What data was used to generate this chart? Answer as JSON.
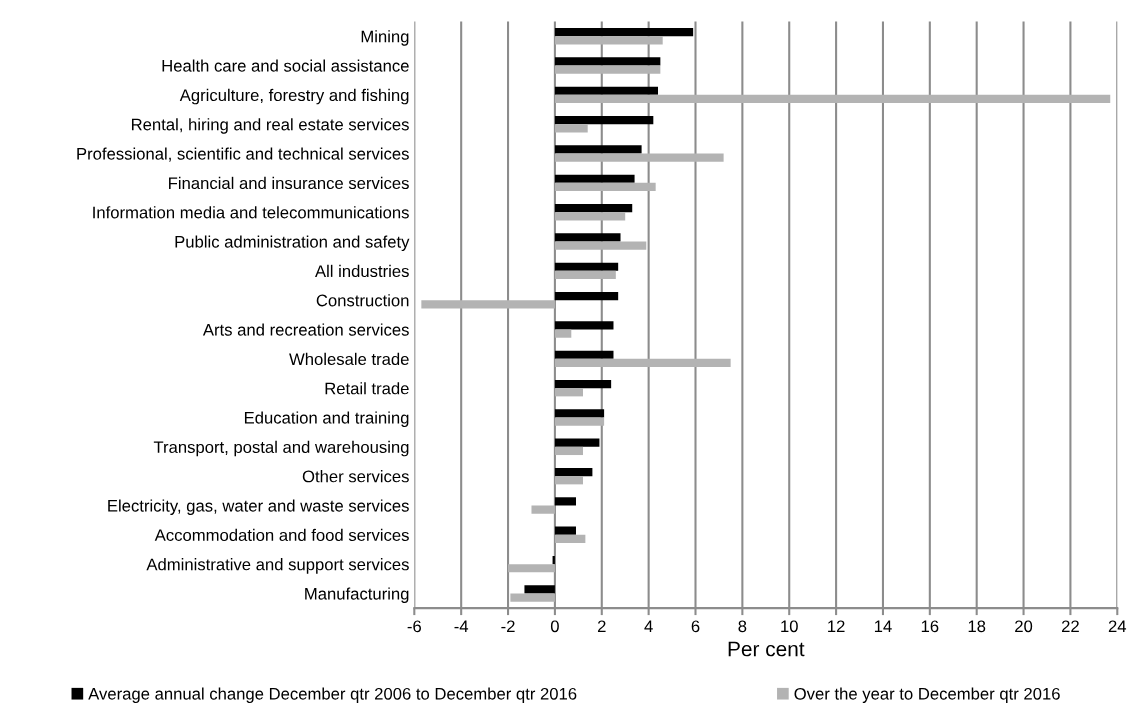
{
  "chart_data": {
    "type": "bar",
    "orientation": "horizontal",
    "xlabel": "Per cent",
    "categories": [
      "Mining",
      "Health care and social assistance",
      "Agriculture, forestry and fishing",
      "Rental, hiring and real estate services",
      "Professional, scientific and technical services",
      "Financial and insurance services",
      "Information media and telecommunications",
      "Public administration and safety",
      "All industries",
      "Construction",
      "Arts and recreation services",
      "Wholesale trade",
      "Retail trade",
      "Education and training",
      "Transport, postal and warehousing",
      "Other services",
      "Electricity, gas, water and waste services",
      "Accommodation and food services",
      "Administrative and support services",
      "Manufacturing"
    ],
    "series": [
      {
        "name": "Average annual change December qtr 2006 to December qtr 2016",
        "color": "#000000",
        "values": [
          5.9,
          4.5,
          4.4,
          4.2,
          3.7,
          3.4,
          3.3,
          2.8,
          2.7,
          2.7,
          2.5,
          2.5,
          2.4,
          2.1,
          1.9,
          1.6,
          0.9,
          0.9,
          -0.1,
          -1.3
        ]
      },
      {
        "name": "Over the year to December qtr 2016",
        "color": "#b3b3b3",
        "values": [
          4.6,
          4.5,
          23.7,
          1.4,
          7.2,
          4.3,
          3.0,
          3.9,
          2.6,
          -5.7,
          0.7,
          7.5,
          1.2,
          2.1,
          1.2,
          1.2,
          -1.0,
          1.3,
          -2.0,
          -1.9
        ]
      }
    ],
    "xlim": [
      -6,
      24
    ],
    "xticks": [
      -6,
      -4,
      -2,
      0,
      2,
      4,
      6,
      8,
      10,
      12,
      14,
      16,
      18,
      20,
      22,
      24
    ],
    "grid": "x",
    "legend": "bottom"
  }
}
